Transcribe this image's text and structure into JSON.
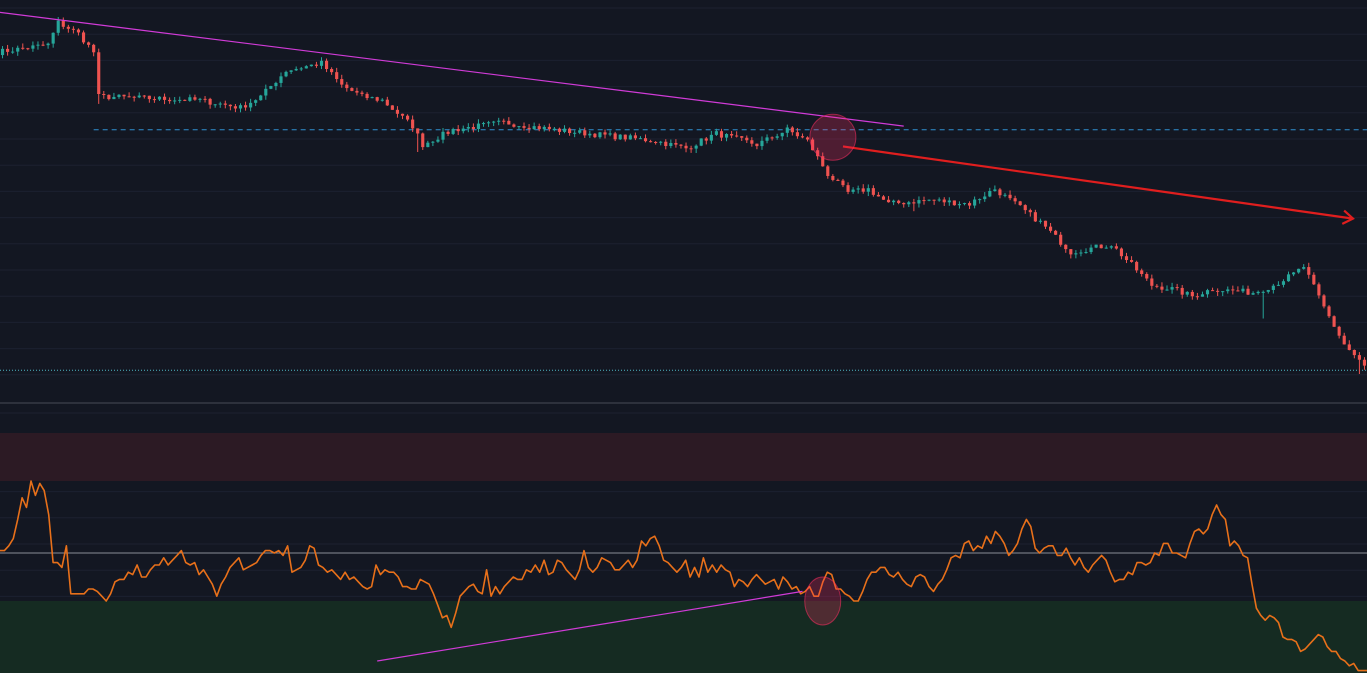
{
  "colors": {
    "background": "#131722",
    "grid": "#1c2130",
    "candle_up": "#26a69a",
    "candle_down": "#ef5350",
    "trendline": "#d13bd8",
    "arrow": "#e01e1e",
    "support_line": "#2f8fd0",
    "rsi_line": "#e8701a",
    "overbought_zone": "#2c1a24",
    "oversold_zone": "#152b22",
    "midline": "#b2b5be",
    "highlight": "#ff2e63",
    "pane_separator": "#363a45",
    "teal_dotted": "#4fb8c6"
  },
  "chart_data": [
    {
      "type": "candlestick",
      "panel": "price",
      "n_candles": 270,
      "y_domain": [
        0,
        100
      ],
      "grid": true,
      "price_path_keypoints": [
        [
          0,
          87
        ],
        [
          10,
          89
        ],
        [
          12,
          95
        ],
        [
          16,
          92
        ],
        [
          19,
          87
        ],
        [
          20,
          75
        ],
        [
          40,
          74
        ],
        [
          48,
          72
        ],
        [
          52,
          75
        ],
        [
          57,
          82
        ],
        [
          64,
          84
        ],
        [
          68,
          78
        ],
        [
          72,
          75
        ],
        [
          76,
          74
        ],
        [
          82,
          67
        ],
        [
          84,
          62
        ],
        [
          90,
          66
        ],
        [
          100,
          68
        ],
        [
          110,
          66
        ],
        [
          130,
          63
        ],
        [
          136,
          61
        ],
        [
          142,
          65
        ],
        [
          150,
          62
        ],
        [
          156,
          66
        ],
        [
          160,
          63
        ],
        [
          164,
          54
        ],
        [
          168,
          49
        ],
        [
          172,
          50
        ],
        [
          176,
          46
        ],
        [
          184,
          47
        ],
        [
          192,
          46
        ],
        [
          197,
          50
        ],
        [
          206,
          41
        ],
        [
          212,
          33
        ],
        [
          220,
          35
        ],
        [
          228,
          24
        ],
        [
          232,
          23
        ],
        [
          236,
          21
        ],
        [
          240,
          23
        ],
        [
          248,
          22
        ],
        [
          252,
          24
        ],
        [
          256,
          27
        ],
        [
          258,
          29
        ],
        [
          262,
          18
        ],
        [
          266,
          8
        ],
        [
          270,
          2
        ]
      ],
      "notable_wicks": [
        [
          19,
          73
        ],
        [
          82,
          60
        ],
        [
          180,
          44
        ],
        [
          249,
          15
        ],
        [
          268,
          0
        ]
      ]
    },
    {
      "type": "line",
      "panel": "oscillator",
      "y_domain": [
        0,
        100
      ],
      "zones": {
        "overbought": [
          80,
          100
        ],
        "oversold": [
          0,
          30
        ]
      },
      "midline": 50,
      "grid": true,
      "values": [
        51,
        51,
        53,
        56,
        64,
        73,
        69,
        80,
        74,
        79,
        76,
        66,
        46,
        46,
        44,
        53,
        33,
        33,
        33,
        33,
        35,
        35,
        34,
        32,
        30,
        33,
        38,
        39,
        39,
        42,
        41,
        45,
        40,
        40,
        43,
        45,
        45,
        48,
        45,
        47,
        49,
        51,
        46,
        45,
        46,
        41,
        43,
        40,
        37,
        32,
        37,
        40,
        44,
        46,
        48,
        43,
        44,
        45,
        46,
        49,
        51,
        51,
        50,
        51,
        49,
        53,
        42,
        43,
        44,
        47,
        53,
        52,
        45,
        44,
        42,
        43,
        41,
        39,
        42,
        39,
        40,
        38,
        36,
        35,
        36,
        45,
        41,
        43,
        42,
        42,
        40,
        36,
        36,
        35,
        35,
        39,
        38,
        37,
        33,
        28,
        23,
        24,
        19,
        25,
        32,
        34,
        36,
        37,
        34,
        33,
        43,
        32,
        36,
        33,
        36,
        38,
        40,
        39,
        39,
        43,
        42,
        45,
        42,
        47,
        41,
        42,
        47,
        46,
        43,
        41,
        39,
        43,
        51,
        44,
        42,
        44,
        48,
        47,
        46,
        43,
        43,
        45,
        47,
        44,
        47,
        55,
        53,
        56,
        57,
        53,
        47,
        46,
        44,
        42,
        44,
        47,
        40,
        44,
        40,
        48,
        42,
        45,
        42,
        45,
        43,
        42,
        36,
        39,
        38,
        36,
        39,
        41,
        39,
        37,
        38,
        39,
        35,
        40,
        38,
        35,
        36,
        33,
        34,
        36,
        32,
        32,
        38,
        42,
        41,
        35,
        35,
        33,
        32,
        30,
        30,
        34,
        39,
        42,
        42,
        44,
        44,
        41,
        40,
        42,
        39,
        37,
        36,
        40,
        41,
        40,
        36,
        34,
        37,
        39,
        43,
        48,
        49,
        48,
        54,
        55,
        51,
        53,
        52,
        57,
        54,
        59,
        57,
        54,
        49,
        51,
        54,
        60,
        64,
        61,
        52,
        50,
        52,
        53,
        53,
        49,
        49,
        52,
        48,
        45,
        48,
        44,
        42,
        45,
        47,
        49,
        47,
        42,
        38,
        39,
        39,
        42,
        41,
        46,
        46,
        45,
        46,
        50,
        49,
        54,
        54,
        50,
        50,
        49,
        48,
        54,
        59,
        60,
        58,
        60,
        66,
        70,
        66,
        64,
        53,
        55,
        53,
        49,
        48,
        37,
        27,
        24,
        22,
        24,
        23,
        21,
        15,
        14,
        14,
        13,
        9,
        10,
        12,
        14,
        16,
        15,
        11,
        9,
        9,
        6,
        5,
        3,
        4,
        1,
        1,
        1
      ]
    }
  ],
  "annotations": {
    "price_trendline": {
      "from": [
        -2,
        98
      ],
      "to": [
        178,
        67
      ]
    },
    "projection_arrow": {
      "from": [
        166,
        61.5
      ],
      "to": [
        270,
        42
      ]
    },
    "support_level": 66,
    "reference_level_dotted": 1,
    "oscillator_trendline": {
      "from": [
        74,
        5
      ],
      "to": [
        158,
        34
      ]
    },
    "highlight_price": {
      "center": [
        164,
        64
      ]
    },
    "highlight_oscillator": {
      "center": [
        162,
        30
      ]
    }
  }
}
